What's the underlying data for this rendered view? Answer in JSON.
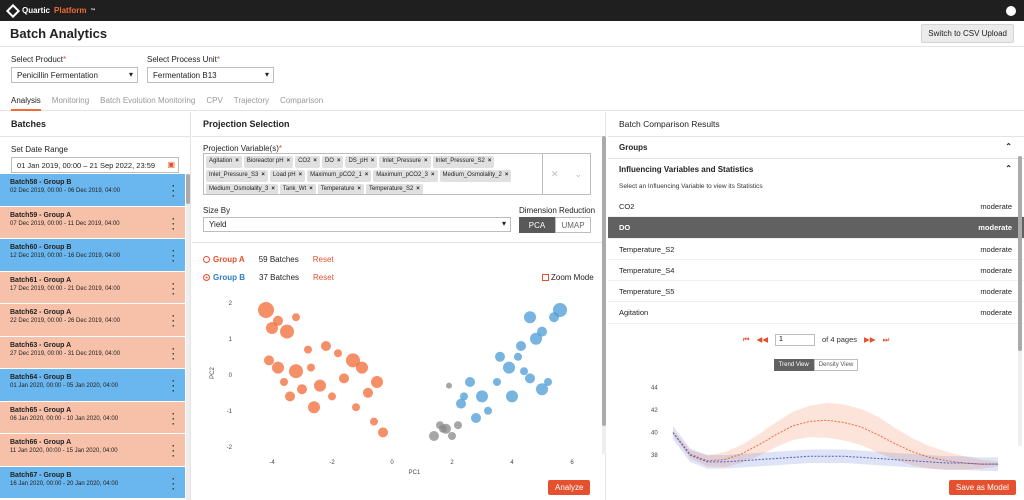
{
  "app": {
    "brand": "Quartic",
    "brand_accent": "Platform",
    "tm": "™"
  },
  "header": {
    "title": "Batch Analytics",
    "csv_button": "Switch to CSV Upload"
  },
  "selectors": {
    "product_label": "Select Product",
    "product_value": "Penicillin Fermentation",
    "unit_label": "Select Process Unit",
    "unit_value": "Fermentation B13"
  },
  "tabs": [
    "Analysis",
    "Monitoring",
    "Batch Evolution Monitoring",
    "CPV",
    "Trajectory",
    "Comparison"
  ],
  "batches_panel": {
    "title": "Batches",
    "date_label": "Set Date Range",
    "date_value": "01 Jan 2019, 00:00 – 21 Sep 2022, 23:59"
  },
  "batches": [
    {
      "name": "Batch58 - Group B",
      "dates": "02 Dec 2019, 00:00 - 06 Dec 2019, 04:00",
      "group": "b"
    },
    {
      "name": "Batch59 - Group A",
      "dates": "07 Dec 2019, 00:00 - 11 Dec 2019, 04:00",
      "group": "a"
    },
    {
      "name": "Batch60 - Group B",
      "dates": "12 Dec 2019, 00:00 - 16 Dec 2019, 04:00",
      "group": "b"
    },
    {
      "name": "Batch61 - Group A",
      "dates": "17 Dec 2019, 00:00 - 21 Dec 2019, 04:00",
      "group": "a"
    },
    {
      "name": "Batch62 - Group A",
      "dates": "22 Dec 2019, 00:00 - 26 Dec 2019, 04:00",
      "group": "a"
    },
    {
      "name": "Batch63 - Group A",
      "dates": "27 Dec 2019, 00:00 - 31 Dec 2019, 04:00",
      "group": "a"
    },
    {
      "name": "Batch64 - Group B",
      "dates": "01 Jan 2020, 00:00 - 05 Jan 2020, 04:00",
      "group": "b"
    },
    {
      "name": "Batch65 - Group A",
      "dates": "06 Jan 2020, 00:00 - 10 Jan 2020, 04:00",
      "group": "a"
    },
    {
      "name": "Batch66 - Group A",
      "dates": "11 Jan 2020, 00:00 - 15 Jan 2020, 04:00",
      "group": "a"
    },
    {
      "name": "Batch67 - Group B",
      "dates": "16 Jan 2020, 00:00 - 20 Jan 2020, 04:00",
      "group": "b"
    }
  ],
  "projection": {
    "title": "Projection Selection",
    "variables_label": "Projection Variable(s)",
    "chips": [
      "Agitation",
      "Bioreactor pH",
      "CO2",
      "DO",
      "DS_pH",
      "Inlet_Pressure",
      "Inlet_Pressure_S2",
      "Inlet_Pressure_S3",
      "Load pH",
      "Maximum_pCO2_1",
      "Maximum_pCO2_3",
      "Medium_Osmolality_2",
      "Medium_Osmolality_3",
      "Tank_Wt",
      "Temperature",
      "Temperature_S2"
    ],
    "size_label": "Size By",
    "size_value": "Yield",
    "dr_label": "Dimension Reduction",
    "pca": "PCA",
    "umap": "UMAP",
    "group_a": {
      "label": "Group A",
      "count": "59 Batches",
      "reset": "Reset"
    },
    "group_b": {
      "label": "Group B",
      "count": "37 Batches",
      "reset": "Reset"
    },
    "zoom": "Zoom Mode",
    "analyze": "Analyze"
  },
  "results": {
    "title": "Batch Comparison Results",
    "groups": "Groups",
    "influencing": "Influencing Variables and Statistics",
    "hint": "Select an Influencing Variable to view its Statistics",
    "variables": [
      {
        "name": "CO2",
        "level": "moderate"
      },
      {
        "name": "DO",
        "level": "moderate"
      },
      {
        "name": "Temperature_S2",
        "level": "moderate"
      },
      {
        "name": "Temperature_S4",
        "level": "moderate"
      },
      {
        "name": "Temperature_S5",
        "level": "moderate"
      },
      {
        "name": "Agitation",
        "level": "moderate"
      }
    ],
    "page": "1",
    "of_pages": "of 4 pages",
    "trend_view": "Trend View",
    "density_view": "Density View",
    "save": "Save as Model"
  },
  "chart_data": [
    {
      "type": "scatter",
      "xlabel": "PC1",
      "ylabel": "PC2",
      "xlim": [
        -5,
        6.5
      ],
      "ylim": [
        -2.2,
        2.3
      ],
      "x_ticks": [
        "-4",
        "-2",
        "0",
        "2",
        "4",
        "6"
      ],
      "y_ticks": [
        "2",
        "1",
        "0",
        "-1",
        "-2"
      ],
      "series": [
        {
          "name": "Group A",
          "color": "#f26a35",
          "points": [
            [
              -4.2,
              1.8
            ],
            [
              -4,
              1.3
            ],
            [
              -3.8,
              1.5
            ],
            [
              -3.5,
              1.2
            ],
            [
              -3.2,
              1.6
            ],
            [
              -4.1,
              0.4
            ],
            [
              -3.8,
              0.2
            ],
            [
              -3.6,
              -0.2
            ],
            [
              -3.2,
              0.1
            ],
            [
              -3,
              -0.4
            ],
            [
              -2.7,
              0.2
            ],
            [
              -2.4,
              -0.3
            ],
            [
              -2.2,
              0.8
            ],
            [
              -2.6,
              -0.9
            ],
            [
              -2,
              -0.6
            ],
            [
              -1.6,
              -0.1
            ],
            [
              -1.3,
              0.4
            ],
            [
              -1.2,
              -0.9
            ],
            [
              -1,
              0.2
            ],
            [
              -0.8,
              -0.5
            ],
            [
              -0.6,
              -1.3
            ],
            [
              -0.5,
              -0.2
            ],
            [
              -0.3,
              -1.6
            ],
            [
              -2.8,
              0.7
            ],
            [
              -3.4,
              -0.6
            ],
            [
              -1.8,
              0.6
            ]
          ],
          "sizes": [
            8,
            6,
            5,
            7,
            4,
            5,
            6,
            4,
            7,
            5,
            4,
            6,
            5,
            6,
            4,
            5,
            7,
            4,
            6,
            5,
            4,
            6,
            5,
            4,
            5,
            4
          ]
        },
        {
          "name": "Group B",
          "color": "#4a9bd6",
          "points": [
            [
              5.6,
              1.8
            ],
            [
              5.4,
              1.6
            ],
            [
              4.6,
              1.6
            ],
            [
              5,
              1.2
            ],
            [
              4.8,
              1
            ],
            [
              4.3,
              0.8
            ],
            [
              4.2,
              0.5
            ],
            [
              3.9,
              0.2
            ],
            [
              3.6,
              0.5
            ],
            [
              3.5,
              -0.2
            ],
            [
              3,
              -0.6
            ],
            [
              2.6,
              -0.2
            ],
            [
              2.4,
              -0.6
            ],
            [
              2.8,
              -1.2
            ],
            [
              4,
              -0.6
            ],
            [
              4.6,
              -0.1
            ],
            [
              5,
              -0.4
            ],
            [
              4.4,
              0.1
            ],
            [
              5.2,
              -0.2
            ],
            [
              2.3,
              -0.8
            ],
            [
              3.2,
              -1
            ]
          ],
          "sizes": [
            7,
            5,
            6,
            5,
            6,
            5,
            4,
            6,
            5,
            4,
            6,
            5,
            4,
            5,
            6,
            5,
            6,
            4,
            4,
            5,
            4
          ]
        },
        {
          "name": "Other",
          "color": "#888888",
          "points": [
            [
              1.8,
              -1.5
            ],
            [
              2,
              -1.7
            ],
            [
              1.6,
              -1.4
            ],
            [
              1.4,
              -1.7
            ],
            [
              2.2,
              -1.4
            ],
            [
              1.9,
              -0.3
            ],
            [
              1.7,
              -1.5
            ]
          ],
          "sizes": [
            5,
            4,
            4,
            5,
            4,
            3,
            4
          ]
        }
      ]
    },
    {
      "type": "line",
      "x_ticks": [],
      "y_ticks": [
        "44",
        "42",
        "40",
        "38"
      ],
      "ylim": [
        36.5,
        44.5
      ],
      "series": [
        {
          "name": "Group A",
          "color": "#f26a35",
          "values": [
            40,
            38.1,
            37.5,
            37.6,
            38.1,
            38.9,
            39.8,
            40.6,
            41,
            41.1,
            40.9,
            40.5,
            39.8,
            39,
            38.3,
            37.8,
            37.5,
            37.3,
            37.2,
            37.2
          ]
        },
        {
          "name": "Group B",
          "color": "#4a62c9",
          "values": [
            40,
            38,
            37.4,
            37.4,
            37.5,
            37.6,
            37.7,
            37.8,
            37.9,
            37.9,
            37.9,
            37.8,
            37.7,
            37.6,
            37.5,
            37.4,
            37.3,
            37.3,
            37.2,
            37.2
          ]
        }
      ]
    }
  ]
}
